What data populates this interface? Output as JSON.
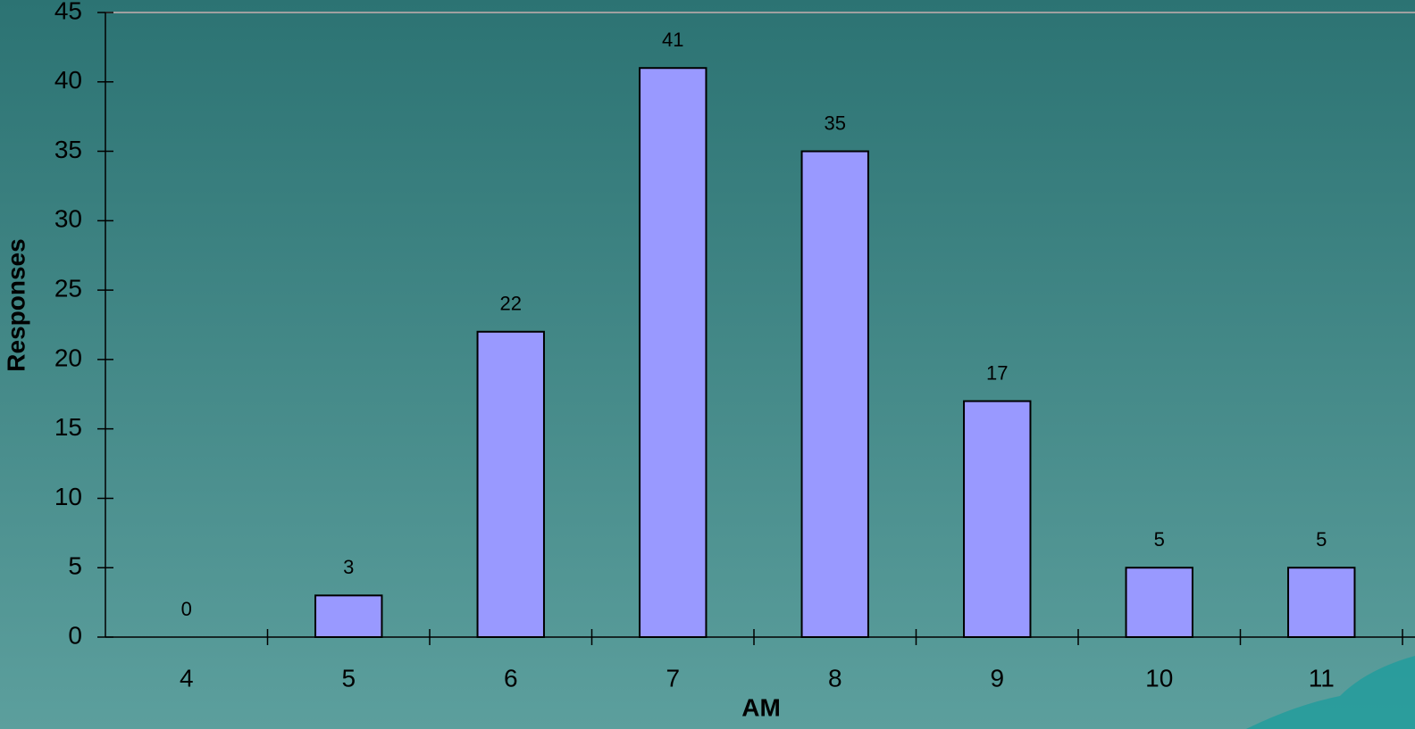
{
  "chart_data": {
    "type": "bar",
    "x_label": "AM",
    "y_label": "Responses",
    "categories": [
      "4",
      "5",
      "6",
      "7",
      "8",
      "9",
      "10",
      "11"
    ],
    "values": [
      0,
      3,
      22,
      41,
      35,
      17,
      5,
      5
    ],
    "color": "#9999ff",
    "ylim": [
      0,
      45
    ],
    "yticks": [
      0,
      5,
      10,
      15,
      20,
      25,
      30,
      35,
      40,
      45
    ],
    "grid": false
  }
}
